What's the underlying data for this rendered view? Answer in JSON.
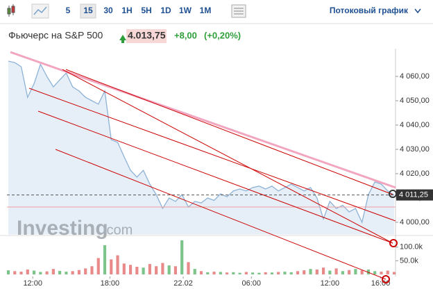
{
  "toolbar": {
    "intervals": [
      "5",
      "15",
      "30",
      "1H",
      "5H",
      "1D",
      "1W",
      "1M"
    ],
    "selected": 1,
    "mode": "Потоковый график"
  },
  "header": {
    "name": "Фьючерс на S&P 500",
    "price": "4.013,75",
    "change": "+8,00",
    "change_pct": "(+0,20%)"
  },
  "watermark": {
    "brand": "Investing",
    "suffix": ".com"
  },
  "chart_data": {
    "type": "line",
    "series": [
      {
        "name": "price",
        "color": "#8db2d6",
        "fill": "#e6eef7",
        "values": [
          4066.3,
          4065.7,
          4064,
          4051.4,
          4057,
          4065,
          4060,
          4055.7,
          4058.6,
          4061.4,
          4055.7,
          4054,
          4051.4,
          4050,
          4048.6,
          4054,
          4034,
          4032.9,
          4027,
          4021.4,
          4018.6,
          4021.4,
          4015.7,
          4011.4,
          4005.7,
          4010,
          4008.6,
          4011.4,
          4006.3,
          4008.6,
          4008,
          4010,
          4009,
          4011.7,
          4010.5,
          4012.9,
          4013.7,
          4012.9,
          4014.3,
          4014.9,
          4013.7,
          4014.9,
          4012.9,
          4014.3,
          4015.7,
          4014.3,
          4012.9,
          4014.3,
          4010,
          4001.4,
          4008.6,
          4005.7,
          4007,
          4004.3,
          4005.7,
          4000,
          4011.4,
          4016.6,
          4015.7,
          4012.9,
          4011.25
        ]
      }
    ],
    "last": {
      "value": 4011.25,
      "label": "4 011,25"
    },
    "xlim": [
      0,
      60
    ],
    "xticks": [
      {
        "value": 3.8,
        "label": "12:00"
      },
      {
        "value": 15.8,
        "label": "18:00"
      },
      {
        "value": 27.2,
        "label": "22.02"
      },
      {
        "value": 37.8,
        "label": "06:00"
      },
      {
        "value": 50,
        "label": "12:00"
      },
      {
        "value": 57.9,
        "label": "16:00"
      }
    ],
    "ylim": [
      3995,
      4069
    ],
    "yticks": [
      {
        "value": 4000,
        "label": "4 000,00"
      },
      {
        "value": 4010,
        "label": "4 010,00"
      },
      {
        "value": 4020,
        "label": "4 020,00"
      },
      {
        "value": 4030,
        "label": "4 030,00"
      },
      {
        "value": 4040,
        "label": "4 040,00"
      },
      {
        "value": 4050,
        "label": "4 050,00"
      },
      {
        "value": 4060,
        "label": "4 060,00"
      }
    ],
    "volume": {
      "up_color": "#7cc48a",
      "down_color": "#e98a8a",
      "values": [
        15000,
        12000,
        10000,
        18000,
        14000,
        9000,
        11000,
        20000,
        13000,
        10000,
        12000,
        16000,
        22000,
        30000,
        60000,
        107000,
        55000,
        70000,
        40000,
        35000,
        28000,
        25000,
        38000,
        30000,
        42000,
        33000,
        30000,
        125000,
        45000,
        20000,
        12000,
        8000,
        10000,
        9000,
        7000,
        8000,
        6000,
        9000,
        7000,
        6000,
        8000,
        7000,
        9000,
        10000,
        8000,
        12000,
        15000,
        20000,
        18000,
        25000,
        14000,
        22000,
        12000,
        16000,
        20000,
        15000,
        18000,
        12000,
        10000,
        14000,
        9000
      ],
      "ylim": [
        0,
        140000
      ],
      "yticks": [
        {
          "value": 50000,
          "label": "50.0k"
        },
        {
          "value": 100000,
          "label": "100.0k"
        }
      ]
    }
  }
}
